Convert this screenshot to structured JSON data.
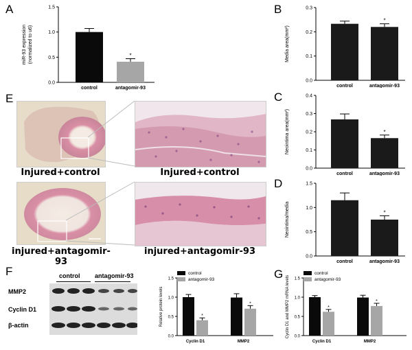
{
  "panels": {
    "A": "A",
    "B": "B",
    "C": "C",
    "D": "D",
    "E": "E",
    "F": "F",
    "G": "G"
  },
  "panel_e": {
    "captions": [
      "Injured+control",
      "Injured+control",
      "injured+antagomir-93",
      "injured+antagomir-93"
    ]
  },
  "panel_f": {
    "group_labels": [
      "control",
      "antagomir-93"
    ],
    "row_labels": [
      "MMP2",
      "Cyclin D1",
      "β-actin"
    ]
  },
  "colors": {
    "black_bar": "#0a0a0a",
    "gray_bar": "#a6a6a6",
    "tissue_pink": "#d98fa6"
  },
  "chart_data": [
    {
      "id": "A",
      "type": "bar",
      "ylabel": "miR-93 expression (normalized to u6)",
      "ylabel_lines": [
        "miR-93 expression",
        "(normalized to u6)"
      ],
      "categories": [
        "control",
        "antagomir-93"
      ],
      "values": [
        1.0,
        0.41
      ],
      "errors": [
        0.07,
        0.06
      ],
      "colors": [
        "#0a0a0a",
        "#a6a6a6"
      ],
      "ylim": [
        0,
        1.5
      ],
      "yticks": [
        "0.0",
        "0.5",
        "1.0",
        "1.5"
      ],
      "annotations": [
        "",
        "*"
      ]
    },
    {
      "id": "B",
      "type": "bar",
      "ylabel": "Media area(mm²)",
      "categories": [
        "control",
        "antagomir-93"
      ],
      "values": [
        0.233,
        0.22
      ],
      "errors": [
        0.011,
        0.013
      ],
      "colors": [
        "#1a1a1a",
        "#1a1a1a"
      ],
      "ylim": [
        0,
        0.3
      ],
      "yticks": [
        "0.0",
        "0.1",
        "0.2",
        "0.3"
      ],
      "annotations": [
        "",
        "*"
      ]
    },
    {
      "id": "C",
      "type": "bar",
      "ylabel": "Neointima area(mm²)",
      "categories": [
        "control",
        "antagomir-93"
      ],
      "values": [
        0.268,
        0.165
      ],
      "errors": [
        0.03,
        0.017
      ],
      "colors": [
        "#1a1a1a",
        "#1a1a1a"
      ],
      "ylim": [
        0,
        0.4
      ],
      "yticks": [
        "0.0",
        "0.1",
        "0.2",
        "0.3",
        "0.4"
      ],
      "annotations": [
        "",
        "*"
      ]
    },
    {
      "id": "D",
      "type": "bar",
      "ylabel": "Neointima/media",
      "categories": [
        "control",
        "antagomir-93"
      ],
      "values": [
        1.15,
        0.75
      ],
      "errors": [
        0.15,
        0.08
      ],
      "colors": [
        "#1a1a1a",
        "#1a1a1a"
      ],
      "ylim": [
        0,
        1.5
      ],
      "yticks": [
        "0.0",
        "0.5",
        "1.0",
        "1.5"
      ],
      "annotations": [
        "",
        "*"
      ]
    },
    {
      "id": "F",
      "type": "bar",
      "ylabel": "Relative protein levels",
      "categories": [
        "Cyclin D1",
        "MMP2"
      ],
      "series": [
        {
          "name": "control",
          "values": [
            1.0,
            0.99
          ],
          "errors": [
            0.07,
            0.1
          ],
          "color": "#0a0a0a"
        },
        {
          "name": "antagomir-93",
          "values": [
            0.4,
            0.7
          ],
          "errors": [
            0.06,
            0.08
          ],
          "color": "#a6a6a6"
        }
      ],
      "annotations": [
        [
          "",
          "*"
        ],
        [
          "",
          "*"
        ]
      ],
      "ylim": [
        0,
        1.5
      ],
      "yticks": [
        "0.0",
        "0.5",
        "1.0",
        "1.5"
      ],
      "legend": "top-left"
    },
    {
      "id": "G",
      "type": "bar",
      "ylabel": "Cyclin D1 and MMP2 mRNA levels",
      "categories": [
        "Cyclin D1",
        "MMP2"
      ],
      "series": [
        {
          "name": "control",
          "values": [
            1.0,
            0.99
          ],
          "errors": [
            0.04,
            0.06
          ],
          "color": "#0a0a0a"
        },
        {
          "name": "antagomir-93",
          "values": [
            0.62,
            0.77
          ],
          "errors": [
            0.06,
            0.07
          ],
          "color": "#a6a6a6"
        }
      ],
      "annotations": [
        [
          "",
          "*"
        ],
        [
          "",
          "*"
        ]
      ],
      "ylim": [
        0,
        1.5
      ],
      "yticks": [
        "0.0",
        "0.5",
        "1.0",
        "1.5"
      ],
      "legend": "top-left"
    }
  ]
}
